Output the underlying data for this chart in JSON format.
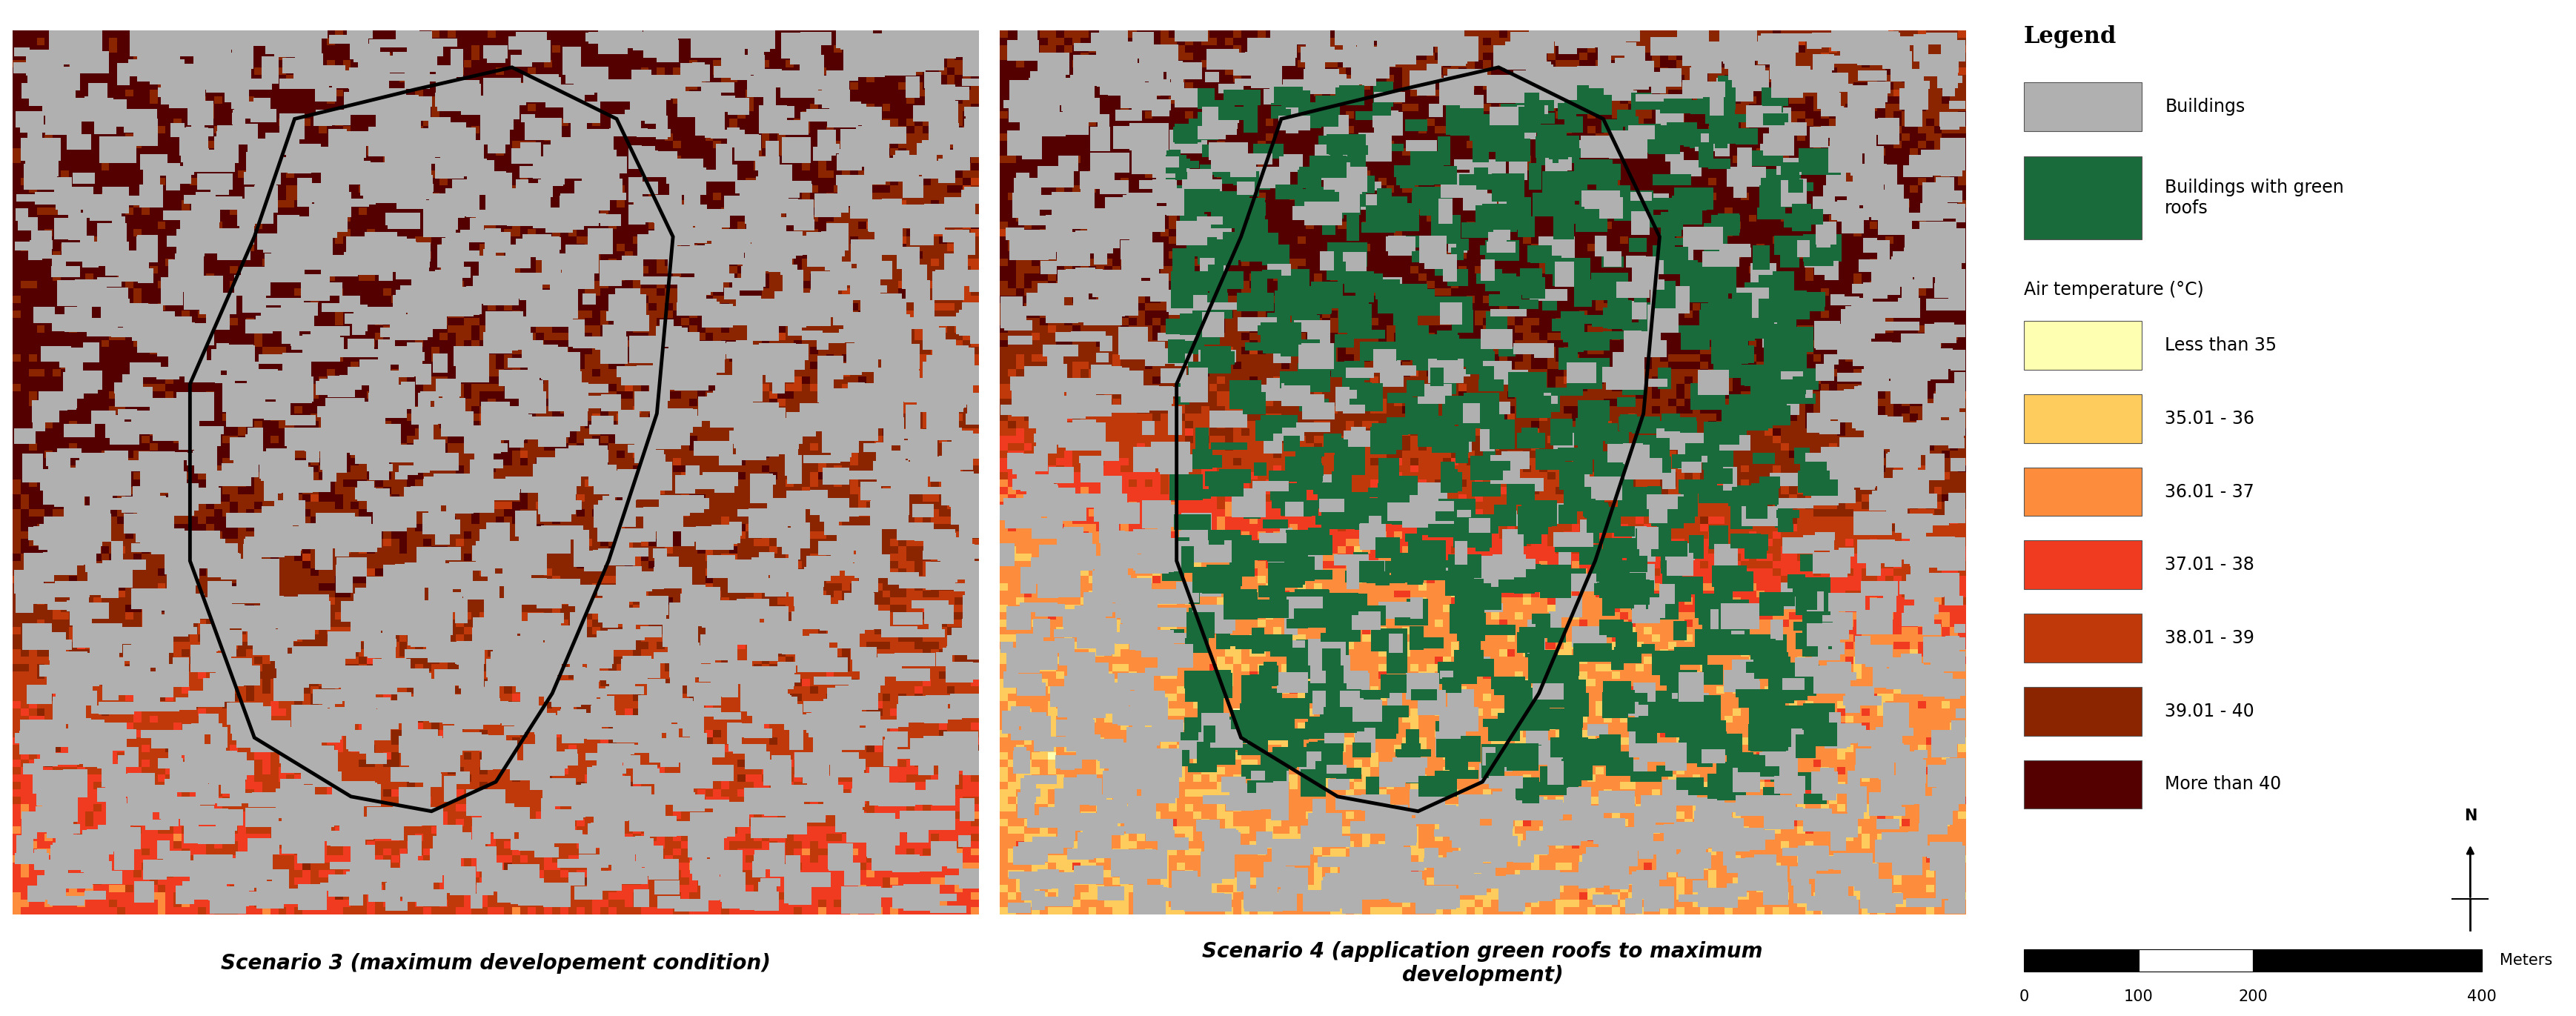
{
  "title_left": "Scenario 3 (maximum developement condition)",
  "title_right": "Scenario 4 (application green roofs to maximum\ndevelopment)",
  "legend_title": "Legend",
  "legend_items_top": [
    {
      "label": "Buildings",
      "color": "#b0b0b0"
    },
    {
      "label": "Buildings with green\nroofs",
      "color": "#1a6b3c"
    }
  ],
  "legend_subtitle": "Air temperature (°C)",
  "legend_items_temp": [
    {
      "label": "Less than 35",
      "color": "#ffffb2"
    },
    {
      "label": "35.01 - 36",
      "color": "#fecc5c"
    },
    {
      "label": "36.01 - 37",
      "color": "#fd8d3c"
    },
    {
      "label": "37.01 - 38",
      "color": "#f03b20"
    },
    {
      "label": "38.01 - 39",
      "color": "#c0390a"
    },
    {
      "label": "39.01 - 40",
      "color": "#8b2500"
    },
    {
      "label": "More than 40",
      "color": "#550000"
    }
  ],
  "bg_color": "#ffffff",
  "scale_label": "Meters",
  "scale_ticks": [
    "0",
    "100",
    "200",
    "400"
  ],
  "title_fontsize": 20,
  "legend_title_fontsize": 22,
  "legend_item_fontsize": 17,
  "scale_fontsize": 15
}
